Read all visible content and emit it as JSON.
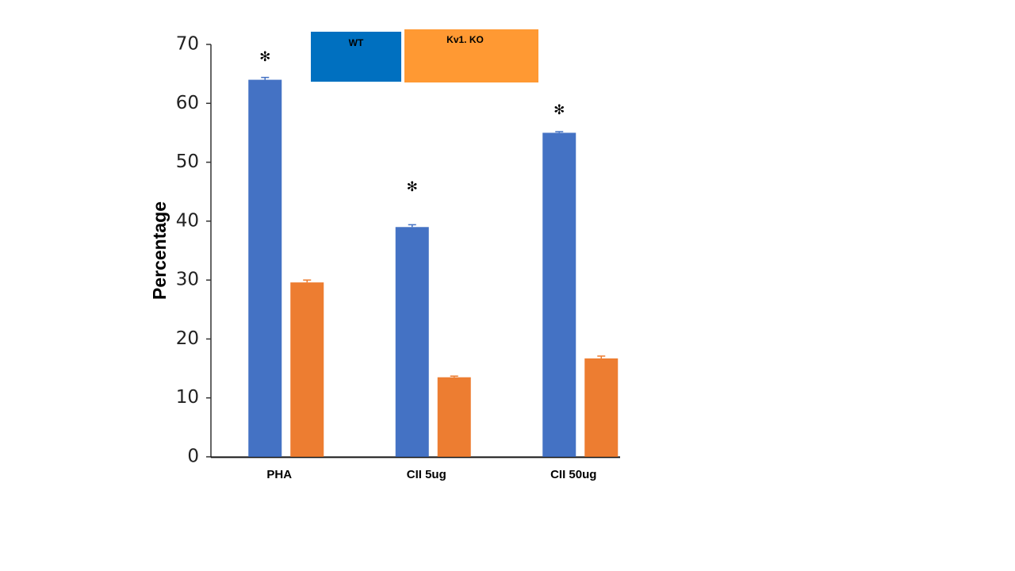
{
  "chart_data": {
    "type": "bar",
    "y_label": "Percentage",
    "categories": [
      "PHA",
      "CII 5ug",
      "CII 50ug"
    ],
    "series": [
      {
        "name": "WT",
        "color": "#4472c4",
        "legend_color": "#0070c0",
        "values": [
          64,
          39,
          55
        ],
        "errors": [
          0.4,
          0.4,
          0.2
        ]
      },
      {
        "name": "Kv1. KO",
        "color": "#ed7d31",
        "legend_color": "#ff9933",
        "values": [
          29.6,
          13.5,
          16.7
        ],
        "errors": [
          0.4,
          0.2,
          0.4
        ]
      }
    ],
    "significance": [
      "✻",
      "✻",
      "✻"
    ],
    "ylim": [
      0,
      70
    ],
    "yticks": [
      0,
      10,
      20,
      30,
      40,
      50,
      60,
      70
    ],
    "grid": false
  }
}
